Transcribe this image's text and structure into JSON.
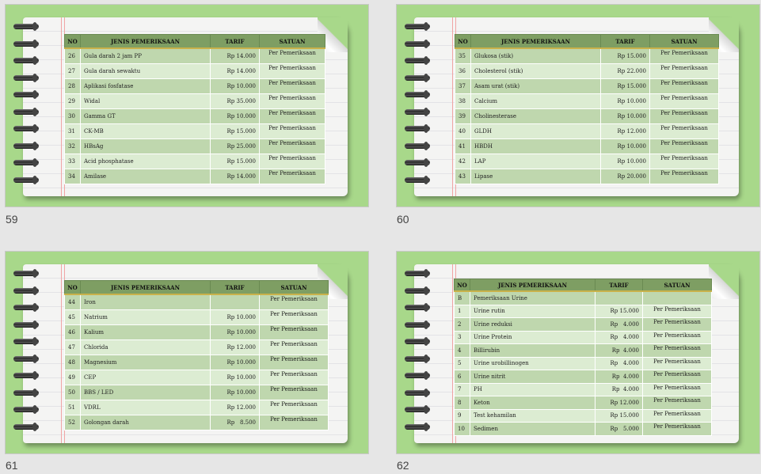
{
  "slides": [
    {
      "number": "59",
      "headers": [
        "NO",
        "JENIS PEMERIKSAAN",
        "TARIF",
        "SATUAN"
      ],
      "rows": [
        {
          "no": "26",
          "name": "Gula darah 2 jam PP",
          "price": "Rp 14.000",
          "unit": "Per Pemeriksaan"
        },
        {
          "no": "27",
          "name": "Gula darah sewaktu",
          "price": "Rp 14.000",
          "unit": "Per Pemeriksaan"
        },
        {
          "no": "28",
          "name": "Aplikasi fosfatase",
          "price": "Rp 10.000",
          "unit": "Per Pemeriksaan"
        },
        {
          "no": "29",
          "name": "Widal",
          "price": "Rp 35.000",
          "unit": "Per Pemeriksaan"
        },
        {
          "no": "30",
          "name": "Gamma GT",
          "price": "Rp 10.000",
          "unit": "Per Pemeriksaan"
        },
        {
          "no": "31",
          "name": "CK-MB",
          "price": "Rp 15.000",
          "unit": "Per Pemeriksaan"
        },
        {
          "no": "32",
          "name": "HBsAg",
          "price": "Rp 25.000",
          "unit": "Per Pemeriksaan"
        },
        {
          "no": "33",
          "name": "Acid phosphatase",
          "price": "Rp 15.000",
          "unit": "Per Pemeriksaan"
        },
        {
          "no": "34",
          "name": "Amilase",
          "price": "Rp 14.000",
          "unit": "Per Pemeriksaan"
        }
      ]
    },
    {
      "number": "60",
      "headers": [
        "NO",
        "JENIS PEMERIKSAAN",
        "TARIF",
        "SATUAN"
      ],
      "rows": [
        {
          "no": "35",
          "name": "Glukosa (stik)",
          "price": "Rp 15.000",
          "unit": "Per Pemeriksaan"
        },
        {
          "no": "36",
          "name": "Cholesterol (stik)",
          "price": "Rp 22.000",
          "unit": "Per Pemeriksaan"
        },
        {
          "no": "37",
          "name": "Asam urat (stik)",
          "price": "Rp 15.000",
          "unit": "Per Pemeriksaan"
        },
        {
          "no": "38",
          "name": "Calcium",
          "price": "Rp 10.000",
          "unit": "Per Pemeriksaan"
        },
        {
          "no": "39",
          "name": "Cholinesterase",
          "price": "Rp 10.000",
          "unit": "Per Pemeriksaan"
        },
        {
          "no": "40",
          "name": "GLDH",
          "price": "Rp 12.000",
          "unit": "Per Pemeriksaan"
        },
        {
          "no": "41",
          "name": "HBDH",
          "price": "Rp 10.000",
          "unit": "Per Pemeriksaan"
        },
        {
          "no": "42",
          "name": "LAP",
          "price": "Rp 10.000",
          "unit": "Per Pemeriksaan"
        },
        {
          "no": "43",
          "name": "Lipase",
          "price": "Rp 20.000",
          "unit": "Per Pemeriksaan"
        }
      ]
    },
    {
      "number": "61",
      "headers": [
        "NO",
        "JENIS PEMERIKSAAN",
        "TARIF",
        "SATUAN"
      ],
      "rows": [
        {
          "no": "44",
          "name": "Iron",
          "price": "",
          "unit": "Per Pemeriksaan"
        },
        {
          "no": "45",
          "name": "Natrium",
          "price": "Rp 10.000",
          "unit": "Per Pemeriksaan"
        },
        {
          "no": "46",
          "name": "Kalium",
          "price": "Rp 10.000",
          "unit": "Per Pemeriksaan"
        },
        {
          "no": "47",
          "name": "Chlorida",
          "price": "Rp 12.000",
          "unit": "Per Pemeriksaan"
        },
        {
          "no": "48",
          "name": "Magnesium",
          "price": "Rp 10.000",
          "unit": "Per Pemeriksaan"
        },
        {
          "no": "49",
          "name": "CEP",
          "price": "Rp 10.000",
          "unit": "Per Pemeriksaan"
        },
        {
          "no": "50",
          "name": "BBS / LED",
          "price": "Rp 10.000",
          "unit": "Per Pemeriksaan"
        },
        {
          "no": "51",
          "name": "VDRL",
          "price": "Rp 12.000",
          "unit": "Per Pemeriksaan"
        },
        {
          "no": "52",
          "name": "Golongan darah",
          "price": "Rp   8.500",
          "unit": "Per Pemeriksaan"
        }
      ]
    },
    {
      "number": "62",
      "headers": [
        "NO",
        "JENIS PEMERIKSAAN",
        "TARIF",
        "SATUAN"
      ],
      "rows": [
        {
          "no": "B",
          "name": "Pemeriksaan Urine",
          "price": "",
          "unit": ""
        },
        {
          "no": "1",
          "name": "Urine rutin",
          "price": "Rp 15.000",
          "unit": "Per Pemeriksaan"
        },
        {
          "no": "2",
          "name": "Urine reduksi",
          "price": "Rp   4.000",
          "unit": "Per Pemeriksaan"
        },
        {
          "no": "3",
          "name": "Urine Protein",
          "price": "Rp   4.000",
          "unit": "Per Pemeriksaan"
        },
        {
          "no": "4",
          "name": "Billirubin",
          "price": "Rp  4.000",
          "unit": "Per Pemeriksaan"
        },
        {
          "no": "5",
          "name": "Urine urobillinogen",
          "price": "Rp   4.000",
          "unit": "Per Pemeriksaan"
        },
        {
          "no": "6",
          "name": "Urine nitrit",
          "price": "Rp  4.000",
          "unit": "Per Pemeriksaan"
        },
        {
          "no": "7",
          "name": "PH",
          "price": "Rp  4.000",
          "unit": "Per Pemeriksaan"
        },
        {
          "no": "8",
          "name": "Keton",
          "price": "Rp 12.000",
          "unit": "Per Pemeriksaan"
        },
        {
          "no": "9",
          "name": "Test kehamilan",
          "price": "Rp 15.000",
          "unit": "Per Pemeriksaan"
        },
        {
          "no": "10",
          "name": "Sedimen",
          "price": "Rp   5.000",
          "unit": "Per Pemeriksaan"
        }
      ]
    }
  ]
}
